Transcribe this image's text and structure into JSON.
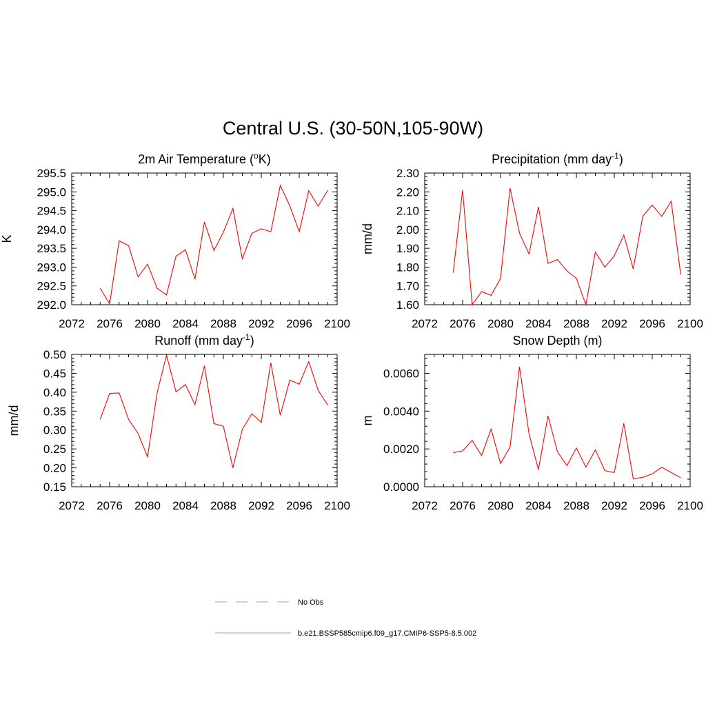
{
  "title": "Central U.S. (30-50N,105-90W)",
  "colors": {
    "model": "#ff0000",
    "obs": "#aab0f0"
  },
  "legend": [
    {
      "label": "No Obs",
      "style": "dashed",
      "color": "#aab0f0"
    },
    {
      "label": "b.e21.BSSP585cmip6.f09_g17.CMIP6-SSP5-8.5.002",
      "style": "solid",
      "color": "#ff9a9a"
    }
  ],
  "chart_data": [
    {
      "type": "line",
      "title": "2m Air Temperature (",
      "title_sup": "o",
      "title_end": "K)",
      "ylabel": "K",
      "xlim": [
        2072,
        2100
      ],
      "ylim": [
        292.0,
        295.5
      ],
      "x_ticks": [
        "2072",
        "2076",
        "2080",
        "2084",
        "2088",
        "2092",
        "2096",
        "2100"
      ],
      "y_ticks": [
        "292.0",
        "292.5",
        "293.0",
        "293.5",
        "294.0",
        "294.5",
        "295.0",
        "295.5"
      ],
      "series": [
        {
          "x": [
            2075,
            2076,
            2077,
            2078,
            2079,
            2080,
            2081,
            2082,
            2083,
            2084,
            2085,
            2086,
            2087,
            2088,
            2089,
            2090,
            2091,
            2092,
            2093,
            2094,
            2095,
            2096,
            2097,
            2098,
            2099
          ],
          "y": [
            292.44,
            292.02,
            293.7,
            293.57,
            292.74,
            293.08,
            292.44,
            292.26,
            293.29,
            293.46,
            292.68,
            294.2,
            293.44,
            293.93,
            294.56,
            293.22,
            293.9,
            294.02,
            293.94,
            295.17,
            294.63,
            293.94,
            295.03,
            294.62,
            295.04
          ]
        }
      ]
    },
    {
      "type": "line",
      "title": "Precipitation (mm day",
      "title_sup": "-1",
      "title_end": ")",
      "ylabel": "mm/d",
      "xlim": [
        2072,
        2100
      ],
      "ylim": [
        1.6,
        2.3
      ],
      "x_ticks": [
        "2072",
        "2076",
        "2080",
        "2084",
        "2088",
        "2092",
        "2096",
        "2100"
      ],
      "y_ticks": [
        "1.60",
        "1.70",
        "1.80",
        "1.90",
        "2.00",
        "2.10",
        "2.20",
        "2.30"
      ],
      "series": [
        {
          "x": [
            2075,
            2076,
            2077,
            2078,
            2079,
            2080,
            2081,
            2082,
            2083,
            2084,
            2085,
            2086,
            2087,
            2088,
            2089,
            2090,
            2091,
            2092,
            2093,
            2094,
            2095,
            2096,
            2097,
            2098,
            2099
          ],
          "y": [
            1.77,
            2.21,
            1.6,
            1.67,
            1.65,
            1.74,
            2.22,
            1.98,
            1.87,
            2.12,
            1.82,
            1.84,
            1.78,
            1.74,
            1.6,
            1.88,
            1.8,
            1.86,
            1.97,
            1.79,
            2.07,
            2.13,
            2.07,
            2.15,
            1.76
          ]
        }
      ]
    },
    {
      "type": "line",
      "title": "Runoff (mm day",
      "title_sup": "-1",
      "title_end": ")",
      "ylabel": "mm/d",
      "xlim": [
        2072,
        2100
      ],
      "ylim": [
        0.15,
        0.5
      ],
      "x_ticks": [
        "2072",
        "2076",
        "2080",
        "2084",
        "2088",
        "2092",
        "2096",
        "2100"
      ],
      "y_ticks": [
        "0.15",
        "0.20",
        "0.25",
        "0.30",
        "0.35",
        "0.40",
        "0.45",
        "0.50"
      ],
      "series": [
        {
          "x": [
            2075,
            2076,
            2077,
            2078,
            2079,
            2080,
            2081,
            2082,
            2083,
            2084,
            2085,
            2086,
            2087,
            2088,
            2089,
            2090,
            2091,
            2092,
            2093,
            2094,
            2095,
            2096,
            2097,
            2098,
            2099
          ],
          "y": [
            0.328,
            0.397,
            0.398,
            0.328,
            0.291,
            0.229,
            0.398,
            0.498,
            0.401,
            0.42,
            0.367,
            0.47,
            0.317,
            0.31,
            0.2,
            0.302,
            0.343,
            0.32,
            0.478,
            0.339,
            0.432,
            0.421,
            0.481,
            0.405,
            0.366
          ]
        }
      ]
    },
    {
      "type": "line",
      "title": "Snow Depth (m)",
      "title_sup": "",
      "title_end": "",
      "ylabel": "m",
      "xlim": [
        2072,
        2100
      ],
      "ylim": [
        0.0,
        0.007
      ],
      "x_ticks": [
        "2072",
        "2076",
        "2080",
        "2084",
        "2088",
        "2092",
        "2096",
        "2100"
      ],
      "y_ticks": [
        "0.0000",
        "0.0020",
        "0.0040",
        "0.0060"
      ],
      "series": [
        {
          "x": [
            2075,
            2076,
            2077,
            2078,
            2079,
            2080,
            2081,
            2082,
            2083,
            2084,
            2085,
            2086,
            2087,
            2088,
            2089,
            2090,
            2091,
            2092,
            2093,
            2094,
            2095,
            2096,
            2097,
            2098,
            2099
          ],
          "y": [
            0.0018,
            0.0019,
            0.00245,
            0.00165,
            0.00305,
            0.00123,
            0.0021,
            0.00635,
            0.0028,
            0.0009,
            0.00375,
            0.00185,
            0.00112,
            0.00205,
            0.00103,
            0.00195,
            0.00085,
            0.00075,
            0.00335,
            0.00042,
            0.0005,
            0.00068,
            0.00103,
            0.00075,
            0.00048
          ]
        }
      ]
    }
  ]
}
